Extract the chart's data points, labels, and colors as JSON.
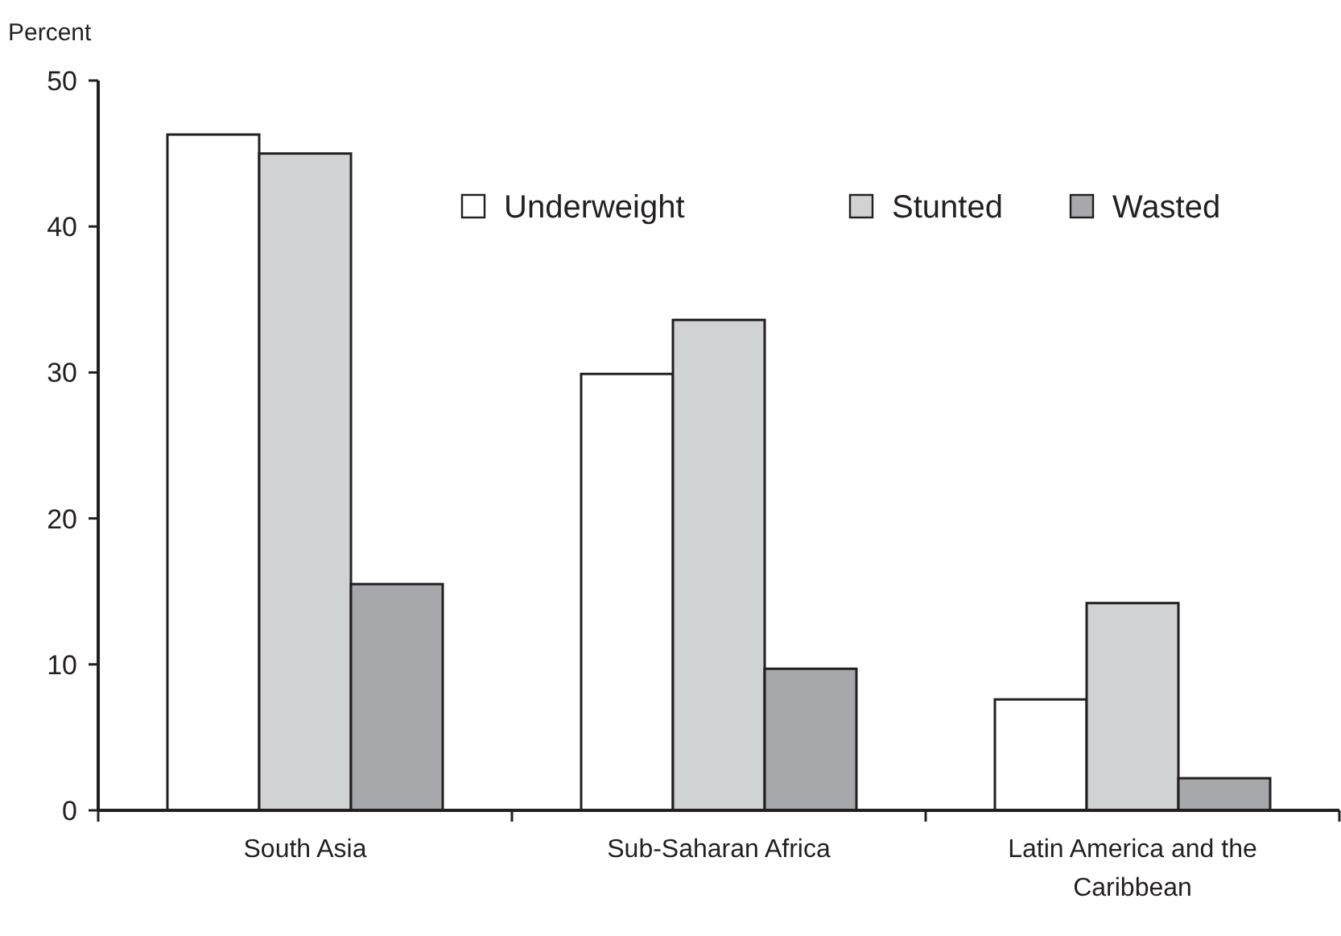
{
  "chart_data": {
    "type": "bar",
    "ylabel": "Percent",
    "categories": [
      "South Asia",
      "Sub-Saharan Africa",
      "Latin America and the Caribbean"
    ],
    "series": [
      {
        "name": "Underweight",
        "color": "#ffffff",
        "values": [
          46.3,
          29.9,
          7.6
        ]
      },
      {
        "name": "Stunted",
        "color": "#d1d2d4",
        "values": [
          45.0,
          33.6,
          14.2
        ]
      },
      {
        "name": "Wasted",
        "color": "#a7a8ab",
        "values": [
          15.5,
          9.7,
          2.2
        ]
      }
    ],
    "ylim": [
      0,
      50
    ],
    "yticks": [
      0,
      10,
      20,
      30,
      40,
      50
    ],
    "grid": false,
    "legend": "top right"
  }
}
